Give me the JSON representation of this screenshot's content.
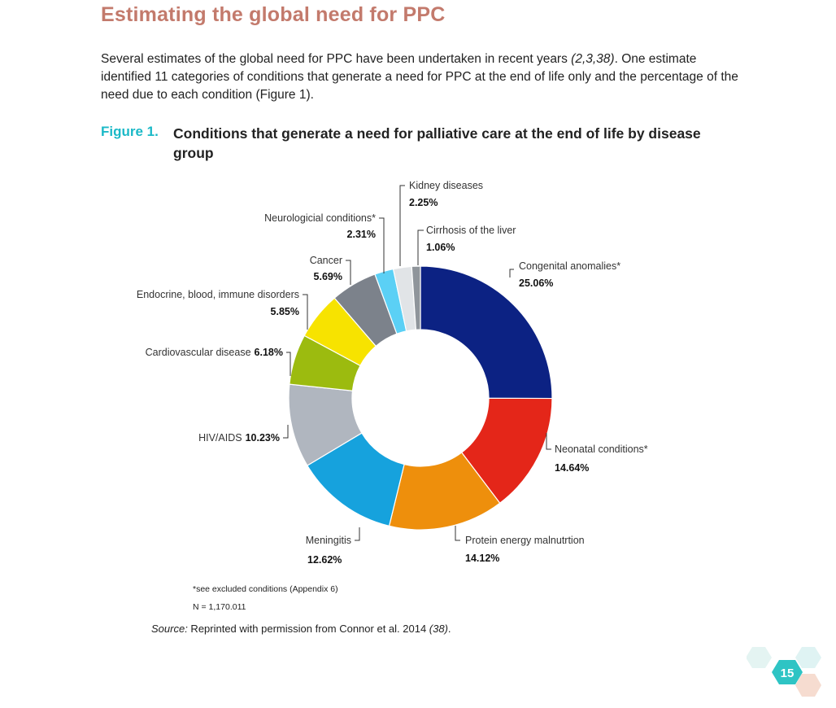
{
  "page": {
    "heading": "Estimating the global need for PPC",
    "intro": {
      "part1": "Several estimates of the global need for PPC have been undertaken in recent years ",
      "cite": "(2,3,38)",
      "part2": ". One estimate identified 11 categories of conditions that generate a need for PPC at the end of life only and the percentage of the need due to each condition (Figure 1)."
    },
    "figure_label": "Figure 1.",
    "figure_title": "Conditions that generate a need for palliative care at the end of life by disease group",
    "note_excluded": "*see excluded conditions (Appendix 6)",
    "note_n": "N = 1,170.011",
    "source": {
      "prefix": "Source:",
      "text": " Reprinted with permission from Connor et al. 2014 ",
      "cite": "(38)",
      "end": "."
    },
    "page_number": "15",
    "colors": {
      "heading": "#c37a6c",
      "figure_label": "#1bb9c7",
      "badge_main": "#2ec4c4",
      "badge_light": "#e4f4f2",
      "badge_peach": "#f6dcd0"
    }
  },
  "chart_data": {
    "type": "pie",
    "donut": true,
    "title": "Conditions that generate a need for palliative care at the end of life by disease group",
    "slices": [
      {
        "label": "Congenital anomalies*",
        "value": 25.06,
        "pct_text": "25.06%",
        "color": "#0c2283"
      },
      {
        "label": "Neonatal conditions*",
        "value": 14.64,
        "pct_text": "14.64%",
        "color": "#e42619"
      },
      {
        "label": "Protein energy malnutrtion",
        "value": 14.12,
        "pct_text": "14.12%",
        "color": "#ee8f0c"
      },
      {
        "label": "Meningitis",
        "value": 12.62,
        "pct_text": "12.62%",
        "color": "#16a2dd"
      },
      {
        "label": "HIV/AIDS",
        "value": 10.23,
        "pct_text": "10.23%",
        "color": "#b0b6bf"
      },
      {
        "label": "Cardiovascular disease",
        "value": 6.18,
        "pct_text": "6.18%",
        "color": "#9cbb0f"
      },
      {
        "label": "Endocrine, blood, immune disorders",
        "value": 5.85,
        "pct_text": "5.85%",
        "color": "#f7e300"
      },
      {
        "label": "Cancer",
        "value": 5.69,
        "pct_text": "5.69%",
        "color": "#7c828b"
      },
      {
        "label": "Neurologicial conditions*",
        "value": 2.31,
        "pct_text": "2.31%",
        "color": "#5bd0f5"
      },
      {
        "label": "Kidney diseases",
        "value": 2.25,
        "pct_text": "2.25%",
        "color": "#e1e4e7"
      },
      {
        "label": "Cirrhosis of the liver",
        "value": 1.06,
        "pct_text": "1.06%",
        "color": "#8f959b"
      }
    ]
  }
}
